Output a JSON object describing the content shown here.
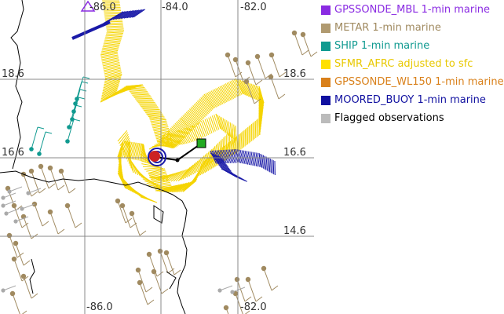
{
  "map": {
    "lon_ticks_top": [
      "-84.0",
      "-82.0"
    ],
    "lon_ticks_bottom": [
      "-86.0",
      "-82.0"
    ],
    "lat_ticks": [
      "18.6",
      "16.6",
      "14.6"
    ],
    "partial_top_label": "-86.0"
  },
  "legend": {
    "items": [
      {
        "label": "GPSSONDE_MBL 1-min marine",
        "color": "#8a2be2",
        "text_color": "#8a2be2"
      },
      {
        "label": "METAR 1-min marine",
        "color": "#b09a70",
        "text_color": "#a08a60"
      },
      {
        "label": "SHIP 1-min marine",
        "color": "#109a90",
        "text_color": "#109a90"
      },
      {
        "label": "SFMR_AFRC adjusted to sfc",
        "color": "#ffe000",
        "text_color": "#e8c800"
      },
      {
        "label": "GPSSONDE_WL150 1-min marine",
        "color": "#d9801a",
        "text_color": "#d9801a"
      },
      {
        "label": "MOORED_BUOY 1-min marine",
        "color": "#1010a0",
        "text_color": "#1010a0"
      },
      {
        "label": "Flagged observations",
        "color": "#bbbbbb",
        "text_color": "#000000"
      }
    ]
  },
  "colors": {
    "sfmr": "#f5d400",
    "buoy": "#1a1aa8",
    "metar": "#a08a60",
    "ship": "#109a90",
    "flagged": "#aaaaaa",
    "storm_center": "#cc2222",
    "target_marker": "#22aa22",
    "coast": "#000000",
    "grid": "#888888"
  }
}
